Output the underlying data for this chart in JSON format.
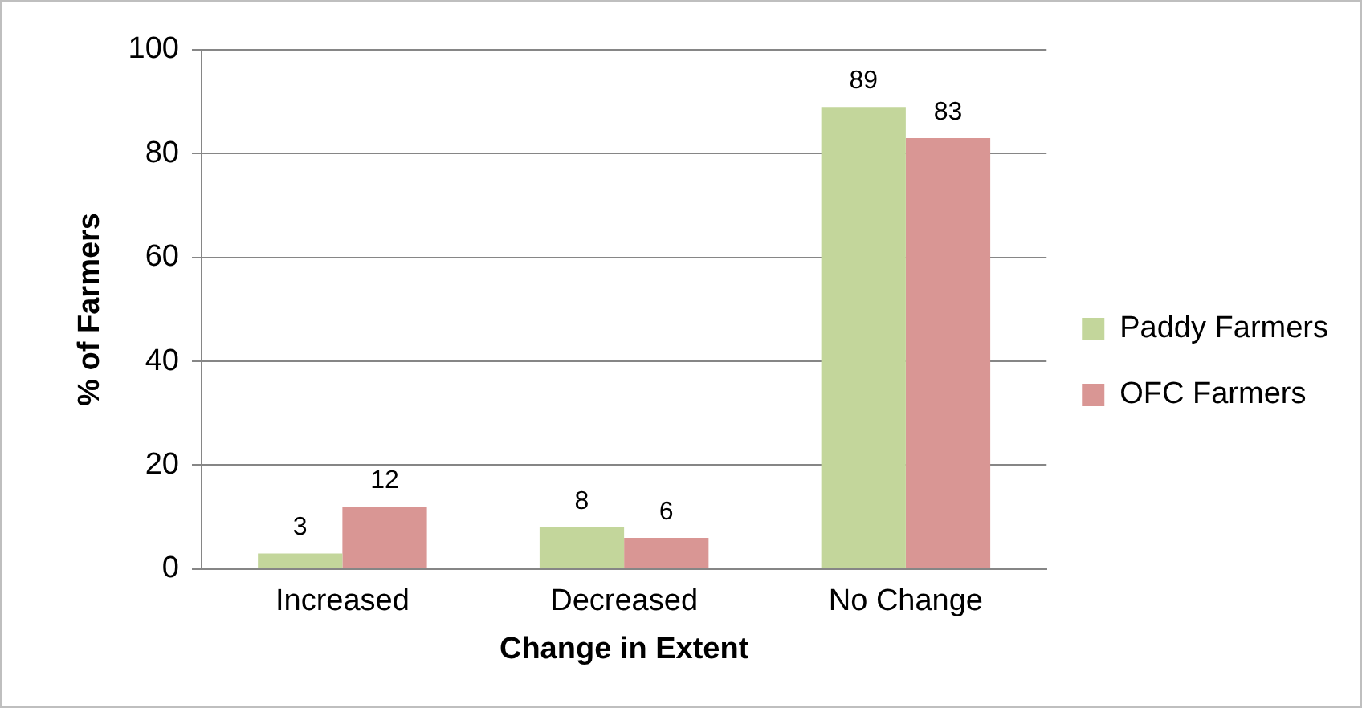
{
  "chart_data": {
    "type": "bar",
    "xlabel": "Change in Extent",
    "ylabel": "% of Farmers",
    "categories": [
      "Increased",
      "Decreased",
      "No Change"
    ],
    "series": [
      {
        "name": "Paddy Farmers",
        "color": "#c3d69b",
        "values": [
          3,
          8,
          89
        ]
      },
      {
        "name": "OFC Farmers",
        "color": "#d99694",
        "values": [
          12,
          6,
          83
        ]
      }
    ],
    "ylim": [
      0,
      100
    ],
    "yticks": [
      0,
      20,
      40,
      60,
      80,
      100
    ],
    "grid": "y",
    "legend": "right",
    "data_labels": true
  }
}
